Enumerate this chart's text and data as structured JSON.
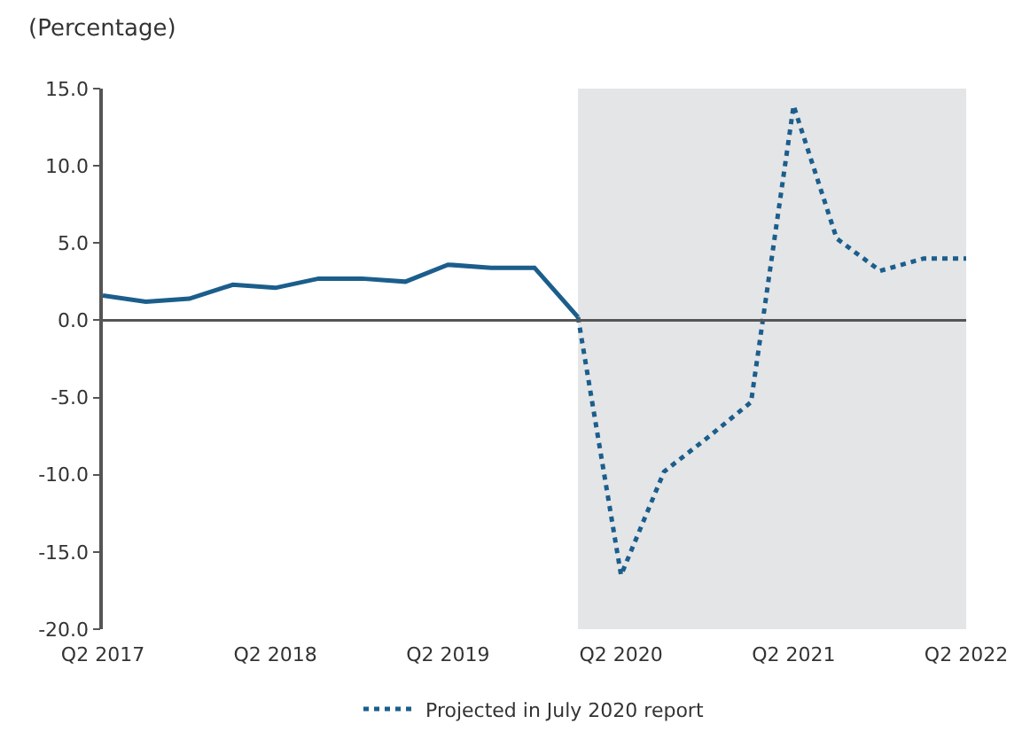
{
  "chart_data": {
    "type": "line",
    "ylabel": "(Percentage)",
    "x": [
      "2017-04",
      "2017-07",
      "2017-10",
      "2018-01",
      "2018-04",
      "2018-07",
      "2018-10",
      "2019-01",
      "2019-04",
      "2019-07",
      "2019-10",
      "2020-01",
      "2020-04",
      "2020-07",
      "2020-10",
      "2021-01",
      "2021-04",
      "2021-07",
      "2021-10",
      "2022-01",
      "2022-04"
    ],
    "series": [
      {
        "color": "#1b5e8c",
        "line_style": "solid",
        "values": [
          1.6,
          1.2,
          1.4,
          2.3,
          2.1,
          2.7,
          2.7,
          2.5,
          3.6,
          3.4,
          3.4,
          0.2,
          null,
          null,
          null,
          null,
          null,
          null,
          null,
          null,
          null
        ]
      },
      {
        "name": "Projected in July 2020 report",
        "color": "#1b5e8c",
        "line_style": "dotted",
        "values": [
          null,
          null,
          null,
          null,
          null,
          null,
          null,
          null,
          null,
          null,
          null,
          0.2,
          -16.5,
          -9.8,
          -7.6,
          -5.3,
          13.9,
          5.3,
          3.2,
          4.0,
          4.0
        ]
      }
    ],
    "xlim": [
      "2017-04",
      "2022-04"
    ],
    "xticks": [
      {
        "value": "2017-04",
        "label": "Q2 2017"
      },
      {
        "value": "2018-04",
        "label": "Q2 2018"
      },
      {
        "value": "2019-04",
        "label": "Q2 2019"
      },
      {
        "value": "2020-04",
        "label": "Q2 2020"
      },
      {
        "value": "2021-04",
        "label": "Q2 2021"
      },
      {
        "value": "2022-04",
        "label": "Q2 2022"
      }
    ],
    "ylim": [
      -20,
      15
    ],
    "yticks": [
      {
        "value": 15,
        "label": "15.0"
      },
      {
        "value": 10,
        "label": "10.0"
      },
      {
        "value": 5,
        "label": "5.0"
      },
      {
        "value": 0,
        "label": "0.0"
      },
      {
        "value": -5,
        "label": "-5.0"
      },
      {
        "value": -10,
        "label": "-10.0"
      },
      {
        "value": -15,
        "label": "-15.0"
      },
      {
        "value": -20,
        "label": "-20.0"
      }
    ],
    "bands": [
      {
        "axis": "x",
        "from": "2020-01",
        "to": "2022-04",
        "color": "#e4e5e7"
      }
    ],
    "ref_lines": [
      {
        "axis": "y",
        "value": 0,
        "color": "#555555"
      }
    ],
    "grid": false,
    "legend": "bottom",
    "marker": "none"
  }
}
